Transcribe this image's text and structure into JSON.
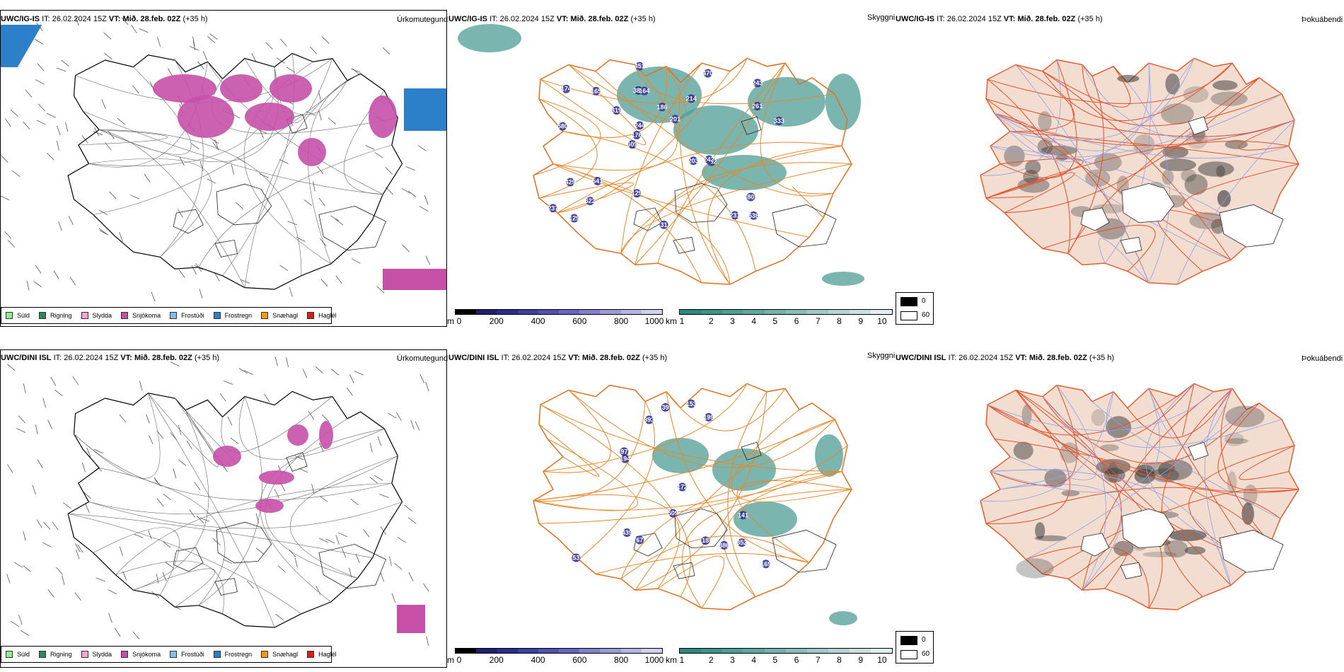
{
  "rows": [
    {
      "model": "UWC/IG-IS",
      "it_label": "IT:",
      "it_value": "26.02.2024 15Z",
      "vt_label": "VT:",
      "vt_value": "Mið. 28.feb. 02Z",
      "lead": "(+35 h)",
      "snow_values": [
        "538",
        "580",
        "243",
        "609",
        "214",
        "129",
        "388",
        "186",
        "429",
        "319",
        "237",
        "622",
        "164",
        "201",
        "482",
        "174",
        "451",
        "333",
        "203",
        "261",
        "176",
        "129",
        "244",
        "165",
        "470",
        "541",
        "231",
        "80",
        "242",
        "31"
      ]
    },
    {
      "model": "UWC/DINI ISL",
      "it_label": "IT:",
      "it_value": "26.02.2024 15Z",
      "vt_label": "VT:",
      "vt_value": "Mið. 28.feb. 02Z",
      "lead": "(+35 h)",
      "snow_values": [
        "53",
        "141",
        "172",
        "509",
        "393",
        "153",
        "352",
        "199",
        "386",
        "439",
        "169",
        "194",
        "67",
        "39",
        "18",
        "97"
      ]
    }
  ],
  "panel_titles": {
    "precip_type": "Úrkomutegund",
    "visibility": "Skyggni",
    "fog": "Þokuábendi"
  },
  "precip_legend": [
    {
      "label": "Súld",
      "color": "#90ee90"
    },
    {
      "label": "Rigning",
      "color": "#2e8b57"
    },
    {
      "label": "Slydda",
      "color": "#f4a6d7"
    },
    {
      "label": "Snjókoma",
      "color": "#c64fa8"
    },
    {
      "label": "Frostúði",
      "color": "#87bdee"
    },
    {
      "label": "Frostregn",
      "color": "#2c7fc9"
    },
    {
      "label": "Snæhagl",
      "color": "#f39c12"
    },
    {
      "label": "Haglél",
      "color": "#e31a1c"
    }
  ],
  "snow_colorbar": {
    "unit": "m",
    "ticks": [
      "0",
      "200",
      "400",
      "600",
      "800",
      "1000"
    ],
    "colors": [
      "#000000",
      "#1f1f6e",
      "#2b2b8c",
      "#3d3da6",
      "#5050b4",
      "#6666c2",
      "#8080cf",
      "#9a9adb",
      "#b4b4e6",
      "#cfcff0"
    ]
  },
  "vis_colorbar": {
    "unit": "km",
    "ticks": [
      "1",
      "2",
      "3",
      "4",
      "5",
      "6",
      "7",
      "8",
      "9",
      "10"
    ],
    "colors": [
      "#2a8a80",
      "#3a9488",
      "#4d9e94",
      "#5fa8a0",
      "#73b3ac",
      "#88beb8",
      "#9ecac5",
      "#b4d6d2",
      "#cae2df",
      "#e0efed"
    ]
  },
  "fog_legend": {
    "high": "0",
    "low": "60",
    "high_color": "#000000",
    "low_color": "#ffffff"
  }
}
